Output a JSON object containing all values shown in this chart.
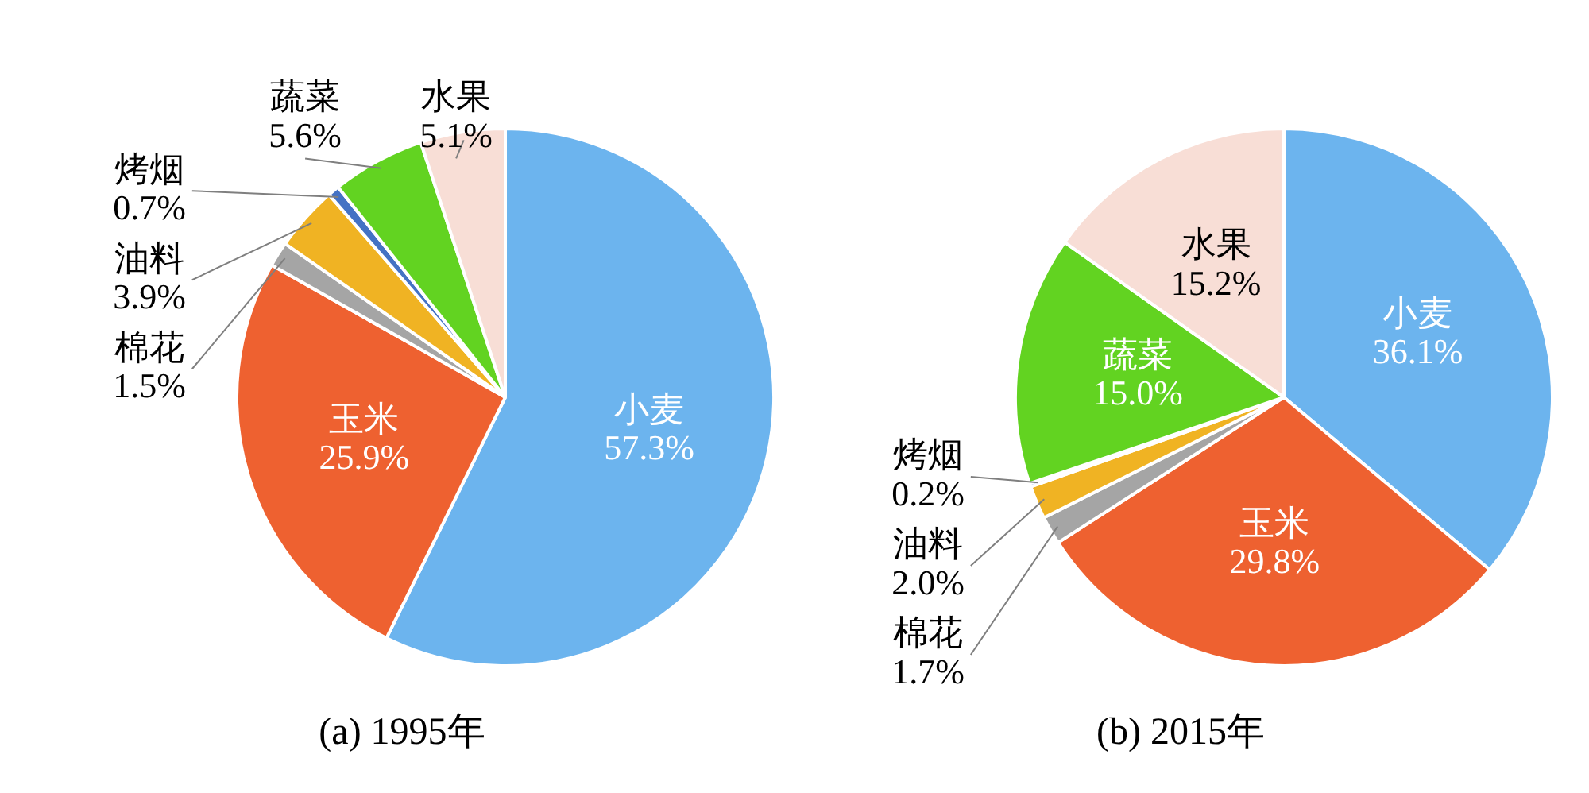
{
  "chart_data": [
    {
      "type": "pie",
      "title": "(a) 1995年",
      "categories": [
        "小麦",
        "玉米",
        "棉花",
        "油料",
        "烤烟",
        "蔬菜",
        "水果"
      ],
      "values": [
        57.3,
        25.9,
        1.5,
        3.9,
        0.7,
        5.6,
        5.1
      ],
      "colors": [
        "#6cb4ee",
        "#ee6130",
        "#a5a5a5",
        "#f0b323",
        "#4472c4",
        "#62d321",
        "#f8ded6"
      ],
      "value_labels": [
        "57.3%",
        "25.9%",
        "1.5%",
        "3.9%",
        "0.7%",
        "5.6%",
        "5.1%"
      ]
    },
    {
      "type": "pie",
      "title": "(b) 2015年",
      "categories": [
        "小麦",
        "玉米",
        "棉花",
        "油料",
        "烤烟",
        "蔬菜",
        "水果"
      ],
      "values": [
        36.1,
        29.8,
        1.7,
        2.0,
        0.2,
        15.0,
        15.2
      ],
      "colors": [
        "#6cb4ee",
        "#ee6130",
        "#a5a5a5",
        "#f0b323",
        "#4472c4",
        "#62d321",
        "#f8ded6"
      ],
      "value_labels": [
        "36.1%",
        "29.8%",
        "1.7%",
        "2.0%",
        "0.2%",
        "15.0%",
        "15.2%"
      ]
    }
  ]
}
